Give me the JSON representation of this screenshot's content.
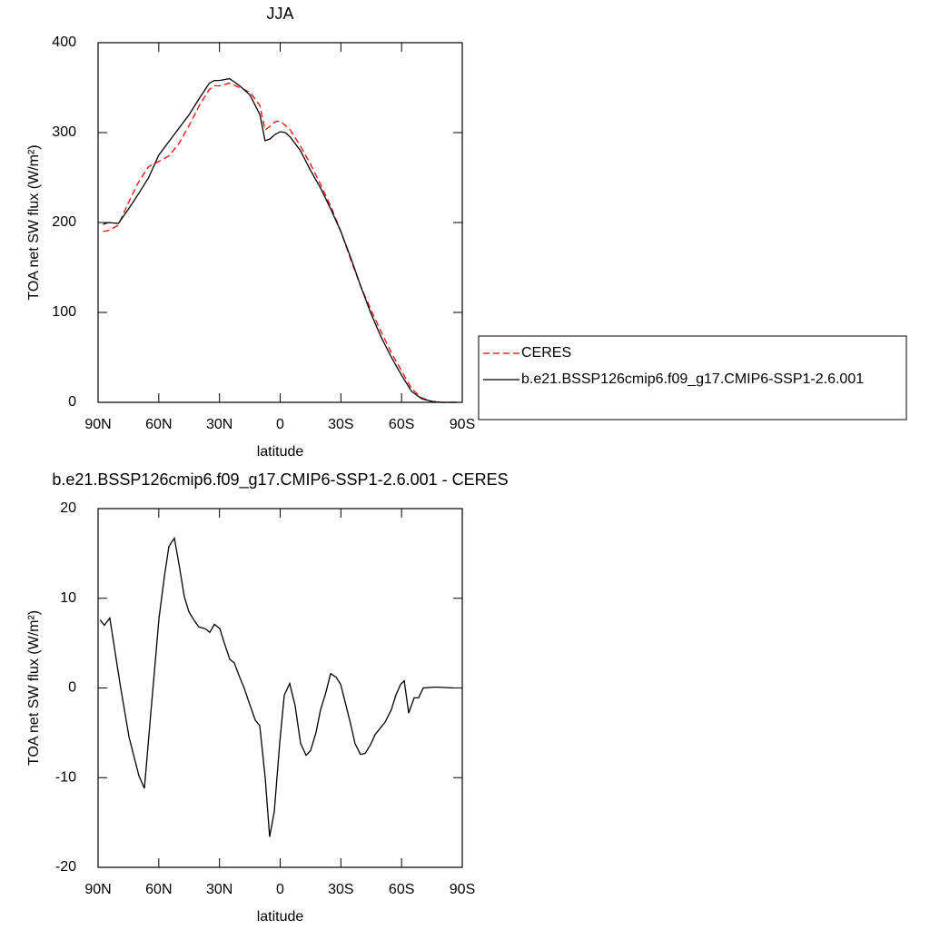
{
  "chart_data": [
    {
      "type": "line",
      "title": "JJA",
      "x_label": "latitude",
      "y_label": "TOA net SW flux (W/m²)",
      "xlim": [
        90,
        -90
      ],
      "xticks": [
        {
          "value": 90,
          "label": "90N"
        },
        {
          "value": 60,
          "label": "60N"
        },
        {
          "value": 30,
          "label": "30N"
        },
        0,
        {
          "value": -30,
          "label": "30S"
        },
        {
          "value": -60,
          "label": "60S"
        },
        {
          "value": -90,
          "label": "90S"
        }
      ],
      "ylim": [
        0,
        400
      ],
      "yticks": [
        0,
        100,
        200,
        300,
        400
      ],
      "legend_position": "right",
      "x": [
        87.5,
        85,
        80,
        75,
        70,
        65,
        60,
        55,
        50,
        45,
        40,
        35,
        32.5,
        30,
        25,
        20,
        15,
        10,
        7.5,
        5,
        2.5,
        0,
        -2.5,
        -5,
        -10,
        -15,
        -20,
        -25,
        -30,
        -35,
        -40,
        -45,
        -50,
        -55,
        -60,
        -65,
        -70,
        -75,
        -80,
        -87.5
      ],
      "series": [
        {
          "name": "CERES",
          "color": "#ff0000",
          "line_style": "dashed",
          "values": [
            190,
            191,
            197,
            222,
            245,
            262,
            268,
            274,
            288,
            308,
            330,
            348,
            352,
            352,
            355,
            350,
            345,
            330,
            303,
            307,
            312,
            313,
            308,
            303,
            285,
            265,
            242,
            218,
            190,
            158,
            128,
            102,
            78,
            55,
            35,
            15,
            5,
            1,
            0,
            0
          ]
        },
        {
          "name": "b.e21.BSSP126cmip6.f09_g17.CMIP6-SSP1-2.6.001",
          "color": "#000000",
          "line_style": "solid",
          "values": [
            198,
            200,
            199,
            215,
            232,
            250,
            275,
            290,
            305,
            320,
            338,
            355,
            358,
            358,
            360,
            352,
            342,
            320,
            291,
            293,
            298,
            301,
            300,
            295,
            280,
            258,
            238,
            215,
            190,
            160,
            128,
            98,
            72,
            50,
            30,
            12,
            4,
            1,
            0,
            0
          ]
        }
      ]
    },
    {
      "type": "line",
      "title": "b.e21.BSSP126cmip6.f09_g17.CMIP6-SSP1-2.6.001 - CERES",
      "x_label": "latitude",
      "y_label": "TOA net SW flux (W/m²)",
      "xlim": [
        90,
        -90
      ],
      "xticks": [
        {
          "value": 90,
          "label": "90N"
        },
        {
          "value": 60,
          "label": "60N"
        },
        {
          "value": 30,
          "label": "30N"
        },
        0,
        {
          "value": -30,
          "label": "30S"
        },
        {
          "value": -60,
          "label": "60S"
        },
        {
          "value": -90,
          "label": "90S"
        }
      ],
      "ylim": [
        -20,
        20
      ],
      "yticks": [
        -20,
        -10,
        0,
        10,
        20
      ],
      "color": "#000000",
      "x": [
        89,
        86.9,
        84.2,
        81.9,
        79.2,
        74.7,
        69.8,
        67.1,
        64,
        59.9,
        57.2,
        55,
        52.3,
        50,
        47.4,
        45.1,
        42.4,
        40.2,
        37,
        34.8,
        32.5,
        29.8,
        27.6,
        24.9,
        22.7,
        20,
        17.8,
        15.1,
        12.3,
        10.1,
        7.4,
        5.2,
        2.9,
        0.2,
        -2,
        -4.7,
        -7.4,
        -10.1,
        -12.8,
        -15,
        -17.7,
        -19.9,
        -22.6,
        -24.9,
        -27.6,
        -29.9,
        -32.6,
        -34.8,
        -37,
        -39.7,
        -42,
        -44.7,
        -46.9,
        -51.9,
        -55,
        -57.2,
        -59.5,
        -61.3,
        -63.5,
        -66.2,
        -68.4,
        -70.7,
        -77,
        -85.5
      ],
      "values": [
        7.6,
        7.0,
        7.8,
        4.5,
        0.5,
        -5.5,
        -9.8,
        -11.2,
        -3,
        7.8,
        12.5,
        15.8,
        16.7,
        13.8,
        10.2,
        8.5,
        7.5,
        6.8,
        6.6,
        6.2,
        7.1,
        6.6,
        5,
        3.2,
        2.8,
        1.2,
        0,
        -1.8,
        -3.6,
        -4.2,
        -10,
        -16.6,
        -13.8,
        -6,
        -0.8,
        0.5,
        -2,
        -6.2,
        -7.5,
        -7,
        -5,
        -2.5,
        -0.5,
        1.6,
        1.2,
        0.4,
        -2,
        -4,
        -6.2,
        -7.4,
        -7.3,
        -6.3,
        -5.2,
        -3.8,
        -2.4,
        -0.8,
        0.4,
        0.8,
        -2.8,
        -1.1,
        -1.1,
        0,
        0.1,
        0
      ]
    }
  ]
}
